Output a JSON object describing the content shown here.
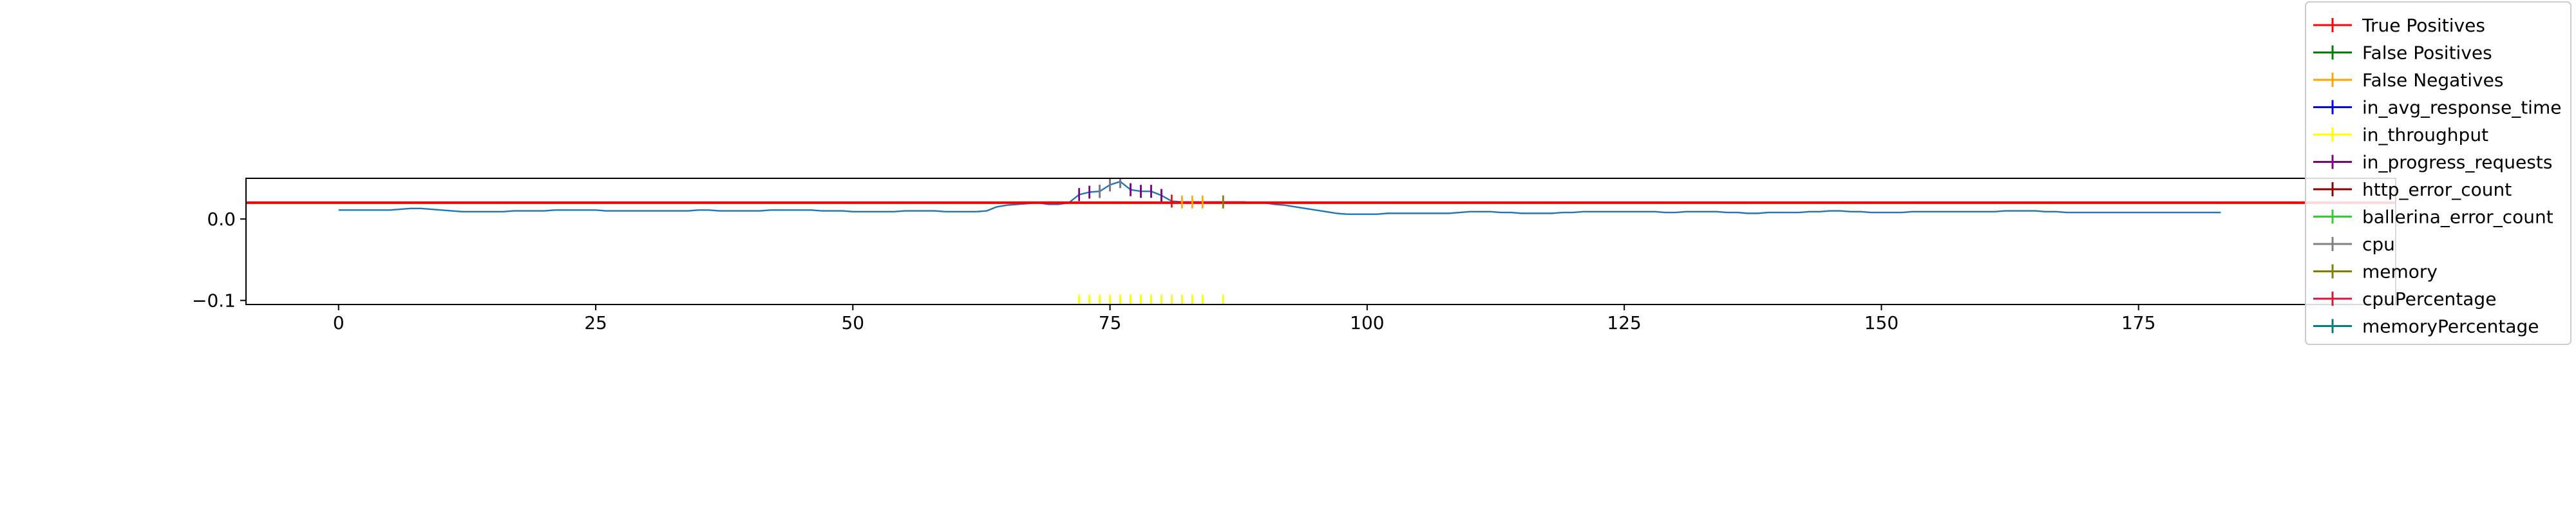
{
  "chart_data": {
    "type": "line",
    "title": "",
    "xlabel": "",
    "ylabel": "",
    "xlim": [
      -9,
      200
    ],
    "ylim": [
      -0.105,
      0.05
    ],
    "x_ticks": [
      0,
      25,
      50,
      75,
      100,
      125,
      150,
      175
    ],
    "y_ticks": [
      0.0,
      -0.1
    ],
    "y_tick_labels": [
      "0.0",
      "−0.1"
    ],
    "grid": false,
    "legend_placement": "top-right",
    "threshold": {
      "value": 0.02,
      "color": "#ff0000"
    },
    "series": [
      {
        "color": "#1f77b4",
        "x_start": 0,
        "x_step": 1,
        "values": [
          0.011,
          0.011,
          0.011,
          0.011,
          0.011,
          0.011,
          0.012,
          0.013,
          0.013,
          0.012,
          0.011,
          0.01,
          0.009,
          0.009,
          0.009,
          0.009,
          0.009,
          0.01,
          0.01,
          0.01,
          0.01,
          0.011,
          0.011,
          0.011,
          0.011,
          0.011,
          0.01,
          0.01,
          0.01,
          0.01,
          0.01,
          0.01,
          0.01,
          0.01,
          0.01,
          0.011,
          0.011,
          0.01,
          0.01,
          0.01,
          0.01,
          0.01,
          0.011,
          0.011,
          0.011,
          0.011,
          0.011,
          0.01,
          0.01,
          0.01,
          0.009,
          0.009,
          0.009,
          0.009,
          0.009,
          0.01,
          0.01,
          0.01,
          0.01,
          0.009,
          0.009,
          0.009,
          0.009,
          0.01,
          0.015,
          0.017,
          0.018,
          0.019,
          0.02,
          0.018,
          0.018,
          0.02,
          0.03,
          0.033,
          0.034,
          0.042,
          0.046,
          0.036,
          0.034,
          0.034,
          0.029,
          0.022,
          0.021,
          0.021,
          0.021,
          0.021,
          0.021,
          0.021,
          0.021,
          0.02,
          0.02,
          0.018,
          0.017,
          0.015,
          0.013,
          0.011,
          0.009,
          0.007,
          0.006,
          0.006,
          0.006,
          0.006,
          0.007,
          0.007,
          0.007,
          0.007,
          0.007,
          0.007,
          0.007,
          0.008,
          0.009,
          0.009,
          0.009,
          0.008,
          0.008,
          0.007,
          0.007,
          0.007,
          0.007,
          0.008,
          0.008,
          0.009,
          0.009,
          0.009,
          0.009,
          0.009,
          0.009,
          0.009,
          0.009,
          0.008,
          0.008,
          0.009,
          0.009,
          0.009,
          0.009,
          0.008,
          0.008,
          0.007,
          0.007,
          0.008,
          0.008,
          0.008,
          0.008,
          0.009,
          0.009,
          0.01,
          0.01,
          0.009,
          0.009,
          0.008,
          0.008,
          0.008,
          0.008,
          0.009,
          0.009,
          0.009,
          0.009,
          0.009,
          0.009,
          0.009,
          0.009,
          0.009,
          0.01,
          0.01,
          0.01,
          0.01,
          0.009,
          0.009,
          0.008,
          0.008,
          0.008,
          0.008,
          0.008,
          0.008,
          0.008,
          0.008,
          0.008,
          0.008,
          0.008,
          0.008,
          0.008,
          0.008,
          0.008,
          0.008
        ]
      }
    ],
    "anomaly_markers": [
      {
        "series": "True Positives",
        "color": "#ff0000",
        "x": [
          81
        ]
      },
      {
        "series": "False Negatives",
        "color": "#ffa500",
        "x": [
          82,
          83,
          84
        ]
      },
      {
        "series": "in_avg_response_time",
        "color": "#0000ff",
        "x": [
          72,
          73,
          74,
          75,
          76,
          77,
          78,
          79,
          80
        ]
      },
      {
        "series": "in_progress_requests",
        "color": "#800080",
        "x": [
          72,
          73,
          74,
          75,
          76,
          77,
          78,
          79,
          80
        ]
      },
      {
        "series": "http_error_count",
        "color": "#8b0000",
        "x": [
          86
        ]
      },
      {
        "series": "memory",
        "color": "#808000",
        "x": [
          86
        ]
      },
      {
        "series": "cpu",
        "color": "#808080",
        "x": [
          74,
          75,
          76
        ]
      }
    ],
    "rug_markers": {
      "color": "#ffff00",
      "x": [
        72,
        73,
        74,
        75,
        76,
        77,
        78,
        79,
        80,
        81,
        82,
        83,
        84,
        86
      ]
    },
    "legend": [
      {
        "label": "True Positives",
        "color": "#ff0000"
      },
      {
        "label": "False Positives",
        "color": "#008000"
      },
      {
        "label": "False Negatives",
        "color": "#ffa500"
      },
      {
        "label": "in_avg_response_time",
        "color": "#0000ff"
      },
      {
        "label": "in_throughput",
        "color": "#ffff00"
      },
      {
        "label": "in_progress_requests",
        "color": "#800080"
      },
      {
        "label": "http_error_count",
        "color": "#8b0000"
      },
      {
        "label": "ballerina_error_count",
        "color": "#32cd32"
      },
      {
        "label": "cpu",
        "color": "#808080"
      },
      {
        "label": "memory",
        "color": "#808000"
      },
      {
        "label": "cpuPercentage",
        "color": "#dc143c"
      },
      {
        "label": "memoryPercentage",
        "color": "#008080"
      }
    ]
  }
}
